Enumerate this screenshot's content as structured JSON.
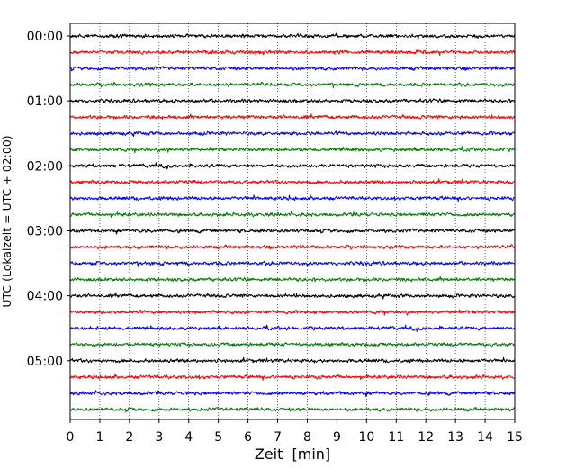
{
  "chart_data": {
    "type": "line",
    "title": "",
    "xlabel": "Zeit  [min]",
    "ylabel": "UTC (Lokalzeit = UTC + 02:00)",
    "xlim": [
      0,
      15
    ],
    "x_ticks": [
      "0",
      "1",
      "2",
      "3",
      "4",
      "5",
      "6",
      "7",
      "8",
      "9",
      "10",
      "11",
      "12",
      "13",
      "14",
      "15"
    ],
    "y_ticks": [
      {
        "label": "00:00",
        "trace": 0
      },
      {
        "label": "01:00",
        "trace": 4
      },
      {
        "label": "02:00",
        "trace": 8
      },
      {
        "label": "03:00",
        "trace": 12
      },
      {
        "label": "04:00",
        "trace": 16
      },
      {
        "label": "05:00",
        "trace": 20
      }
    ],
    "trace_minutes": 15,
    "trace_count": 24,
    "vertical_grid": "dotted",
    "legend": "none",
    "color_cycle": [
      "#000000",
      "#ff0000",
      "#0000ff",
      "#008000"
    ]
  }
}
